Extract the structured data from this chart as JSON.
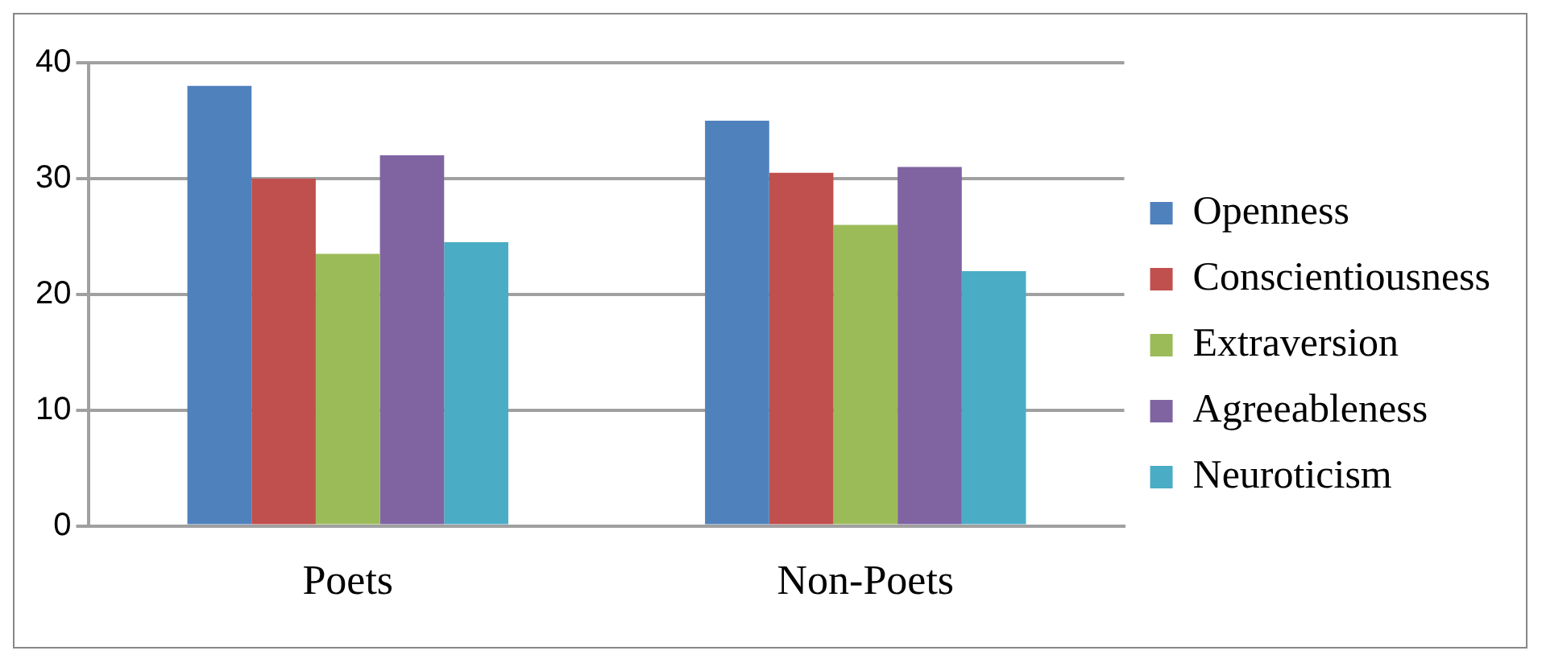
{
  "chart_data": {
    "type": "bar",
    "categories": [
      "Poets",
      "Non-Poets"
    ],
    "series": [
      {
        "name": "Openness",
        "color": "#4f81bd",
        "values": [
          38,
          35
        ]
      },
      {
        "name": "Conscientiousness",
        "color": "#c0504d",
        "values": [
          30,
          30.5
        ]
      },
      {
        "name": "Extraversion",
        "color": "#9bbb59",
        "values": [
          23.5,
          26
        ]
      },
      {
        "name": "Agreeableness",
        "color": "#8064a2",
        "values": [
          32,
          31
        ]
      },
      {
        "name": "Neuroticism",
        "color": "#4bacc6",
        "values": [
          24.5,
          22
        ]
      }
    ],
    "ylim": [
      0,
      40
    ],
    "yticks": [
      0,
      10,
      20,
      30,
      40
    ],
    "grid": "y",
    "legend": "right"
  }
}
